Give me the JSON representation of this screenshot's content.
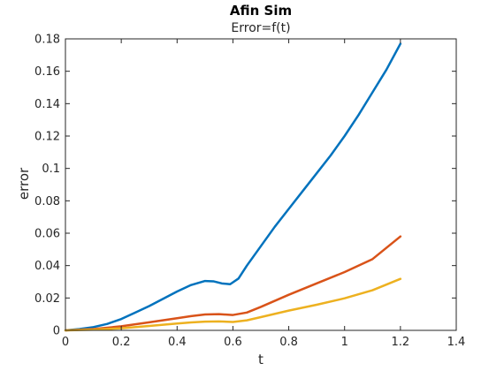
{
  "chart_data": {
    "type": "line",
    "title": "Afin Sim",
    "subtitle": "Error=f(t)",
    "xlabel": "t",
    "ylabel": "error",
    "xlim": [
      0,
      1.4
    ],
    "ylim": [
      0,
      0.18
    ],
    "xticks": [
      0,
      0.2,
      0.4,
      0.6,
      0.8,
      1,
      1.2,
      1.4
    ],
    "xtick_labels": [
      "0",
      "0.2",
      "0.4",
      "0.6",
      "0.8",
      "1",
      "1.2",
      "1.4"
    ],
    "yticks": [
      0,
      0.02,
      0.04,
      0.06,
      0.08,
      0.1,
      0.12,
      0.14,
      0.16,
      0.18
    ],
    "ytick_labels": [
      "0",
      "0.02",
      "0.04",
      "0.06",
      "0.08",
      "0.1",
      "0.12",
      "0.14",
      "0.16",
      "0.18"
    ],
    "grid": false,
    "box": true,
    "series": [
      {
        "color": "#0072BD",
        "x": [
          0,
          0.05,
          0.1,
          0.15,
          0.2,
          0.25,
          0.3,
          0.35,
          0.4,
          0.45,
          0.5,
          0.53,
          0.56,
          0.59,
          0.62,
          0.65,
          0.7,
          0.75,
          0.8,
          0.85,
          0.9,
          0.95,
          1.0,
          1.05,
          1.1,
          1.15,
          1.2
        ],
        "y": [
          0,
          0.0008,
          0.002,
          0.004,
          0.007,
          0.011,
          0.015,
          0.0195,
          0.024,
          0.028,
          0.0305,
          0.0303,
          0.029,
          0.0285,
          0.032,
          0.04,
          0.052,
          0.064,
          0.075,
          0.086,
          0.097,
          0.108,
          0.12,
          0.133,
          0.147,
          0.161,
          0.177
        ]
      },
      {
        "color": "#D95319",
        "x": [
          0,
          0.1,
          0.2,
          0.3,
          0.4,
          0.45,
          0.5,
          0.55,
          0.6,
          0.65,
          0.7,
          0.8,
          0.9,
          1.0,
          1.1,
          1.2
        ],
        "y": [
          0,
          0.0008,
          0.0025,
          0.005,
          0.0075,
          0.0088,
          0.0098,
          0.01,
          0.0095,
          0.011,
          0.0145,
          0.022,
          0.029,
          0.036,
          0.044,
          0.058
        ]
      },
      {
        "color": "#EDB120",
        "x": [
          0,
          0.1,
          0.2,
          0.3,
          0.4,
          0.45,
          0.5,
          0.55,
          0.6,
          0.65,
          0.7,
          0.8,
          0.9,
          1.0,
          1.1,
          1.2
        ],
        "y": [
          0,
          0.0004,
          0.0013,
          0.0027,
          0.0042,
          0.0049,
          0.0054,
          0.0055,
          0.0052,
          0.0062,
          0.0082,
          0.0122,
          0.0158,
          0.0198,
          0.0248,
          0.0318
        ]
      }
    ]
  }
}
